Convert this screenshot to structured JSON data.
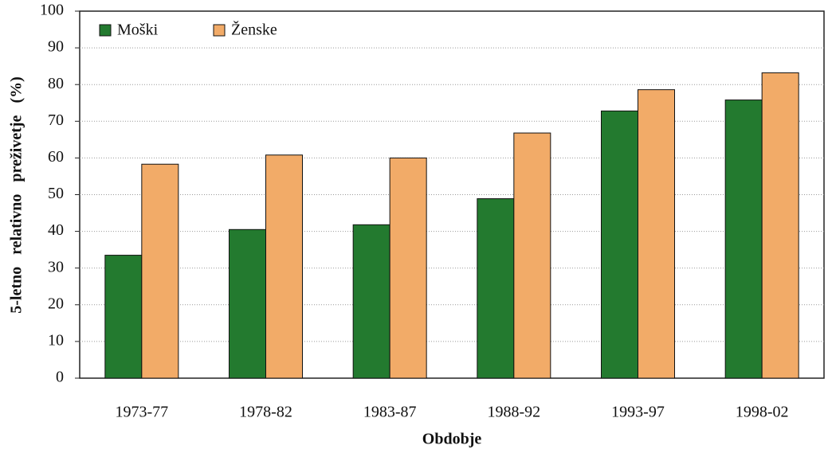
{
  "chart_data": {
    "type": "bar",
    "x_label": "Obdobje",
    "y_label": "5-letno relativno preživetje (%)",
    "categories": [
      "1973-77",
      "1978-82",
      "1983-87",
      "1988-92",
      "1993-97",
      "1998-02"
    ],
    "series": [
      {
        "name": "Moški",
        "color": "#237a2f",
        "values": [
          33.5,
          40.5,
          41.8,
          48.9,
          72.8,
          75.8
        ]
      },
      {
        "name": "Ženske",
        "color": "#f2ab68",
        "values": [
          58.3,
          60.8,
          60.0,
          66.8,
          78.6,
          83.2
        ]
      }
    ],
    "ylim": [
      0,
      100
    ],
    "yticks": [
      0,
      10,
      20,
      30,
      40,
      50,
      60,
      70,
      80,
      90,
      100
    ],
    "grid": true,
    "legend": "top-left"
  }
}
